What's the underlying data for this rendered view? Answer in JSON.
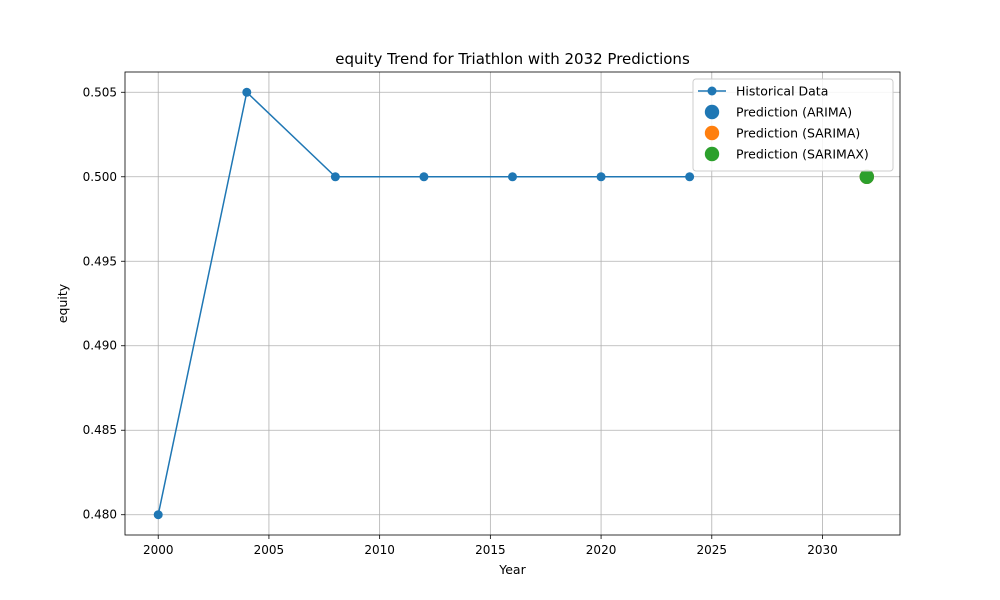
{
  "chart_data": {
    "type": "line",
    "title": "equity Trend for Triathlon with 2032 Predictions",
    "xlabel": "Year",
    "ylabel": "equity",
    "xlim": [
      1998.5,
      2033.5
    ],
    "ylim": [
      0.4788,
      0.5062
    ],
    "xticks": [
      2000,
      2005,
      2010,
      2015,
      2020,
      2025,
      2030
    ],
    "yticks": [
      0.48,
      0.485,
      0.49,
      0.495,
      0.5,
      0.505
    ],
    "ytick_decimals": 3,
    "grid": true,
    "legend_position": "top-right",
    "series": [
      {
        "name": "Historical Data",
        "kind": "line-marker",
        "color": "#1f77b4",
        "x": [
          2000,
          2004,
          2008,
          2012,
          2016,
          2020,
          2024
        ],
        "y": [
          0.48,
          0.505,
          0.5,
          0.5,
          0.5,
          0.5,
          0.5
        ]
      },
      {
        "name": "Prediction (ARIMA)",
        "kind": "point",
        "color": "#1f77b4",
        "x": [
          2032
        ],
        "y": [
          0.5
        ]
      },
      {
        "name": "Prediction (SARIMA)",
        "kind": "point",
        "color": "#ff7f0e",
        "x": [
          2032
        ],
        "y": [
          0.5
        ]
      },
      {
        "name": "Prediction (SARIMAX)",
        "kind": "point",
        "color": "#2ca02c",
        "x": [
          2032
        ],
        "y": [
          0.5
        ]
      }
    ]
  }
}
